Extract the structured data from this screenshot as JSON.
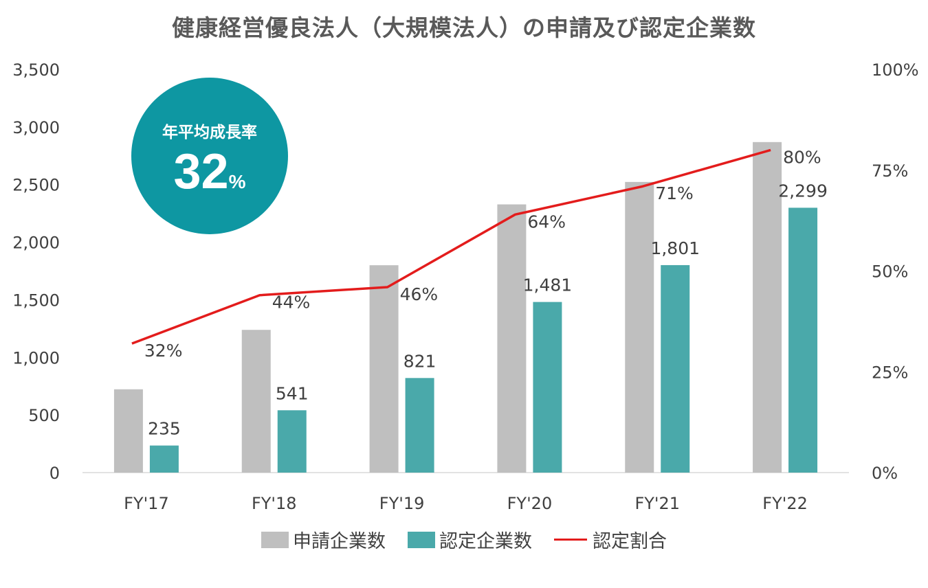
{
  "chart_data": {
    "type": "bar",
    "title": "健康経営優良法人（大規模法人）の申請及び認定企業数",
    "categories": [
      "FY'17",
      "FY'18",
      "FY'19",
      "FY'20",
      "FY'21",
      "FY'22"
    ],
    "series": [
      {
        "name": "申請企業数",
        "kind": "bar",
        "color": "#bfbfbf",
        "values": [
          723,
          1239,
          1800,
          2328,
          2523,
          2869
        ]
      },
      {
        "name": "認定企業数",
        "kind": "bar",
        "color": "#4aa9aa",
        "values": [
          235,
          541,
          821,
          1481,
          1801,
          2299
        ],
        "labels": [
          "235",
          "541",
          "821",
          "1,481",
          "1,801",
          "2,299"
        ]
      },
      {
        "name": "認定割合",
        "kind": "line",
        "axis": "right",
        "color": "#e31c1c",
        "values": [
          0.32,
          0.44,
          0.46,
          0.64,
          0.71,
          0.8
        ],
        "labels": [
          "32%",
          "44%",
          "46%",
          "64%",
          "71%",
          "80%"
        ]
      }
    ],
    "ylim": [
      0,
      3500
    ],
    "yticks": [
      "0",
      "500",
      "1,000",
      "1,500",
      "2,000",
      "2,500",
      "3,000",
      "3,500"
    ],
    "y2lim": [
      0,
      1
    ],
    "y2ticks": [
      "0%",
      "25%",
      "50%",
      "75%",
      "100%"
    ],
    "legend": "bottom",
    "grid": false
  },
  "badge": {
    "label": "年平均成長率",
    "value": "32",
    "unit": "%",
    "color": "#0e97a2"
  }
}
